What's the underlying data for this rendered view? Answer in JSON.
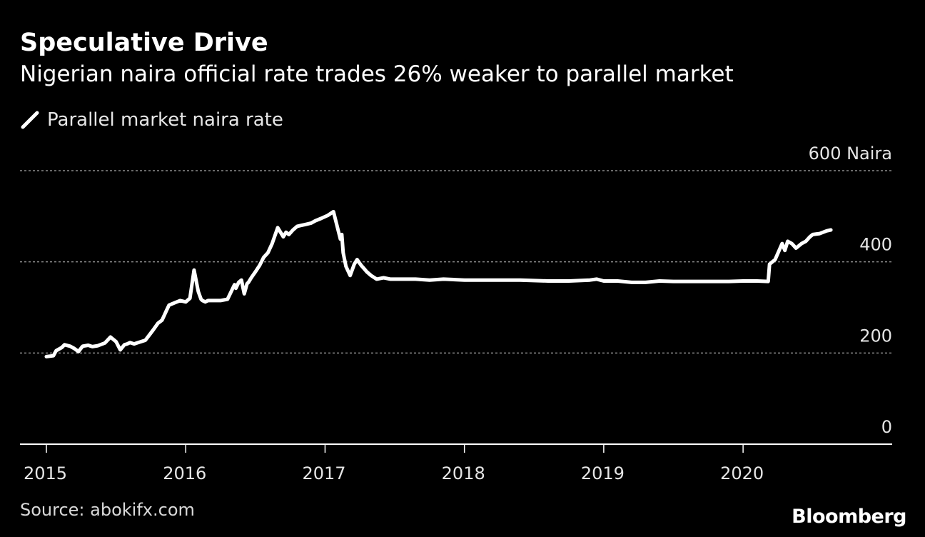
{
  "header": {
    "title": "Speculative Drive",
    "subtitle": "Nigerian naira official rate trades 26% weaker to parallel market"
  },
  "legend": {
    "label": "Parallel market naira rate"
  },
  "footer": {
    "source": "Source: abokifx.com",
    "brand": "Bloomberg"
  },
  "colors": {
    "background": "#000000",
    "line": "#ffffff",
    "grid": "#8c8c8c"
  },
  "chart_data": {
    "type": "line",
    "title": "Speculative Drive",
    "subtitle": "Nigerian naira official rate trades 26% weaker to parallel market",
    "xlabel": "",
    "ylabel": "",
    "xlim": [
      2015.0,
      2021.07
    ],
    "ylim": [
      0,
      600
    ],
    "y_unit": "Naira",
    "y_ticks": [
      {
        "value": 0,
        "label": "0"
      },
      {
        "value": 200,
        "label": "200"
      },
      {
        "value": 400,
        "label": "400"
      },
      {
        "value": 600,
        "label": "600 Naira"
      }
    ],
    "x_ticks": [
      {
        "value": 2015,
        "label": "2015"
      },
      {
        "value": 2016,
        "label": "2016"
      },
      {
        "value": 2017,
        "label": "2017"
      },
      {
        "value": 2018,
        "label": "2018"
      },
      {
        "value": 2019,
        "label": "2019"
      },
      {
        "value": 2020,
        "label": "2020"
      }
    ],
    "grid": "horizontal-dotted",
    "legend_position": "top-left",
    "series": [
      {
        "name": "Parallel market naira rate",
        "x": [
          2015.0,
          2015.05,
          2015.07,
          2015.11,
          2015.13,
          2015.17,
          2015.2,
          2015.23,
          2015.26,
          2015.3,
          2015.33,
          2015.37,
          2015.42,
          2015.46,
          2015.5,
          2015.53,
          2015.56,
          2015.58,
          2015.6,
          2015.63,
          2015.65,
          2015.68,
          2015.71,
          2015.74,
          2015.77,
          2015.8,
          2015.83,
          2015.86,
          2015.88,
          2015.92,
          2015.96,
          2016.0,
          2016.03,
          2016.06,
          2016.09,
          2016.11,
          2016.12,
          2016.14,
          2016.16,
          2016.2,
          2016.25,
          2016.3,
          2016.35,
          2016.36,
          2016.38,
          2016.4,
          2016.42,
          2016.44,
          2016.45,
          2016.47,
          2016.5,
          2016.53,
          2016.56,
          2016.59,
          2016.62,
          2016.66,
          2016.7,
          2016.72,
          2016.74,
          2016.77,
          2016.8,
          2016.83,
          2016.86,
          2016.9,
          2016.93,
          2016.97,
          2017.02,
          2017.06,
          2017.11,
          2017.12,
          2017.13,
          2017.15,
          2017.18,
          2017.21,
          2017.23,
          2017.26,
          2017.28,
          2017.3,
          2017.33,
          2017.37,
          2017.42,
          2017.47,
          2017.55,
          2017.65,
          2017.75,
          2017.85,
          2018.0,
          2018.2,
          2018.4,
          2018.6,
          2018.75,
          2018.9,
          2018.95,
          2019.0,
          2019.1,
          2019.2,
          2019.3,
          2019.4,
          2019.5,
          2019.6,
          2019.7,
          2019.8,
          2019.9,
          2020.0,
          2020.1,
          2020.18,
          2020.19,
          2020.23,
          2020.28,
          2020.3,
          2020.32,
          2020.35,
          2020.38,
          2020.42,
          2020.45,
          2020.48,
          2020.5,
          2020.55,
          2020.6,
          2020.63
        ],
        "values": [
          192,
          194,
          205,
          212,
          218,
          215,
          210,
          203,
          215,
          217,
          214,
          216,
          222,
          235,
          225,
          207,
          218,
          220,
          223,
          220,
          222,
          225,
          228,
          240,
          252,
          265,
          272,
          292,
          305,
          310,
          315,
          312,
          320,
          382,
          335,
          318,
          315,
          312,
          315,
          315,
          315,
          318,
          350,
          342,
          355,
          360,
          330,
          352,
          355,
          365,
          378,
          392,
          410,
          420,
          440,
          475,
          455,
          465,
          460,
          470,
          478,
          480,
          482,
          485,
          490,
          495,
          502,
          510,
          450,
          460,
          420,
          390,
          370,
          395,
          405,
          392,
          385,
          378,
          370,
          362,
          365,
          362,
          362,
          362,
          360,
          362,
          360,
          360,
          360,
          358,
          358,
          360,
          362,
          358,
          358,
          355,
          355,
          358,
          357,
          357,
          357,
          357,
          357,
          358,
          358,
          357,
          395,
          405,
          440,
          425,
          445,
          440,
          430,
          440,
          445,
          455,
          460,
          462,
          468,
          470
        ]
      }
    ]
  }
}
